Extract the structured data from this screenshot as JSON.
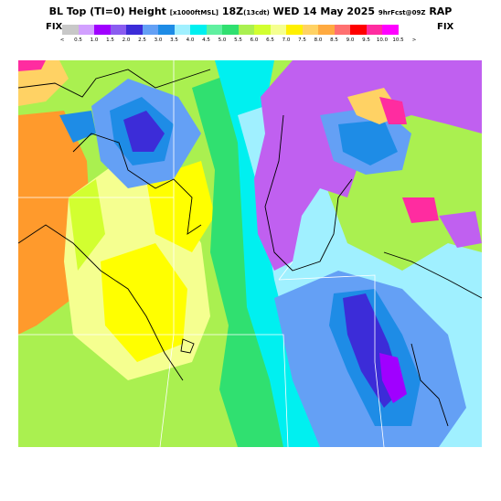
{
  "header": {
    "title_main": "BL Top (TI=0) Height",
    "title_units": "[x1000ftMSL]",
    "title_time": "18Z",
    "title_tz": "(13cdt)",
    "title_date": "WED 14 May 2025",
    "title_fcst": "9hrFcst@09Z",
    "title_model": "RAP"
  },
  "legend": {
    "fix_left": "FIX",
    "fix_right": "FIX",
    "lt_label": "<",
    "gt_label": ">",
    "values": [
      "0.5",
      "1.0",
      "1.5",
      "2.0",
      "2.5",
      "3.0",
      "3.5",
      "4.0",
      "4.5",
      "5.0",
      "5.5",
      "6.0",
      "6.5",
      "7.0",
      "7.5",
      "8.0",
      "8.5",
      "9.0",
      "9.5",
      "10.0",
      "10.5"
    ],
    "colors": [
      "#c8c8c8",
      "#d2a0ff",
      "#a000ff",
      "#8a5cf0",
      "#3c2cd8",
      "#64a0f5",
      "#1e8ce6",
      "#a0f0ff",
      "#00f0f0",
      "#60f0a0",
      "#30e070",
      "#aaf050",
      "#d2ff30",
      "#f5ff90",
      "#fff000",
      "#ffd264",
      "#ffaa40",
      "#ff7070",
      "#ff0000",
      "#ff2ca0",
      "#ff00ff"
    ]
  },
  "map": {
    "region": "Upper Midwest / Great Lakes",
    "colors": {
      "orange": "#ff9a2c",
      "yellow": "#ffff00",
      "pale_yellow": "#f5ff90",
      "yellow_green": "#d2ff30",
      "lime": "#aaf050",
      "green": "#30e070",
      "aqua": "#a0f0ff",
      "cyan": "#00f0f0",
      "blue": "#64a0f5",
      "mid_blue": "#1e8ce6",
      "indigo": "#3c2cd8",
      "purple": "#a000ff",
      "lake_purple": "#c060f0",
      "magenta": "#ff2ca0"
    }
  }
}
